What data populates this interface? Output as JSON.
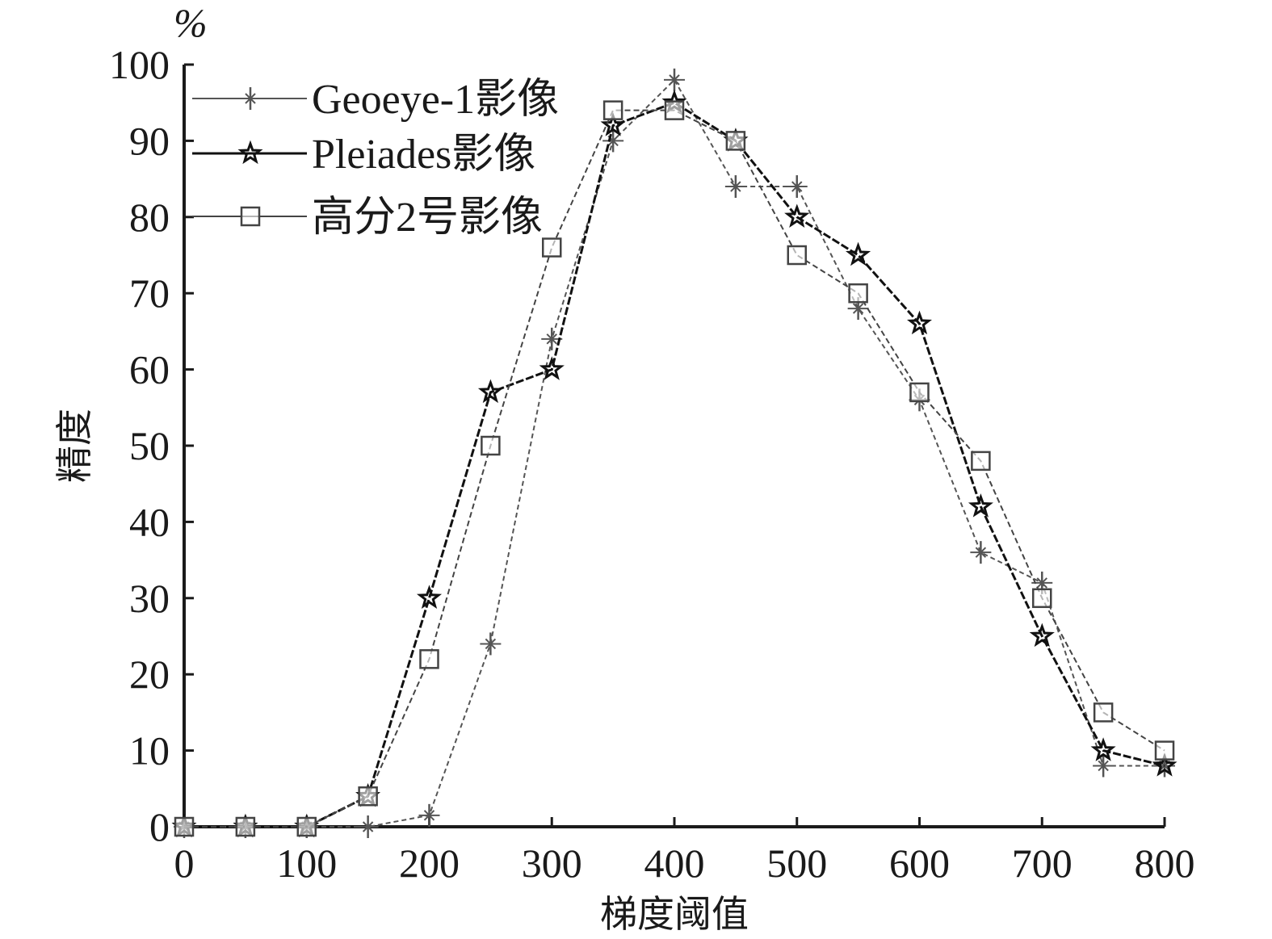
{
  "chart_data": {
    "type": "line",
    "title": "",
    "xlabel": "梯度阈值",
    "ylabel": "精度",
    "yunit": "%",
    "xlim": [
      0,
      800
    ],
    "ylim": [
      0,
      100
    ],
    "xticks": [
      0,
      100,
      200,
      300,
      400,
      500,
      600,
      700,
      800
    ],
    "yticks": [
      0,
      10,
      20,
      30,
      40,
      50,
      60,
      70,
      80,
      90,
      100
    ],
    "grid": false,
    "legend_position": "upper left",
    "x": [
      0,
      50,
      100,
      150,
      200,
      250,
      300,
      350,
      400,
      450,
      500,
      550,
      600,
      650,
      700,
      750,
      800
    ],
    "series": [
      {
        "name": "Geoeye-1影像",
        "marker": "asterisk",
        "color": "#555555",
        "values": [
          0,
          0,
          0,
          0,
          1.5,
          24,
          64,
          90,
          98,
          84,
          84,
          68,
          56,
          36,
          32,
          8,
          8
        ]
      },
      {
        "name": "Pleiades影像",
        "marker": "star",
        "color": "#111111",
        "values": [
          0,
          0,
          0,
          4,
          30,
          57,
          60,
          92,
          95,
          90,
          80,
          75,
          66,
          42,
          25,
          10,
          8
        ]
      },
      {
        "name": "高分2号影像",
        "marker": "square",
        "color": "#444444",
        "values": [
          0,
          0,
          0,
          4,
          22,
          50,
          76,
          94,
          94,
          90,
          75,
          70,
          57,
          48,
          30,
          15,
          10
        ]
      }
    ]
  }
}
